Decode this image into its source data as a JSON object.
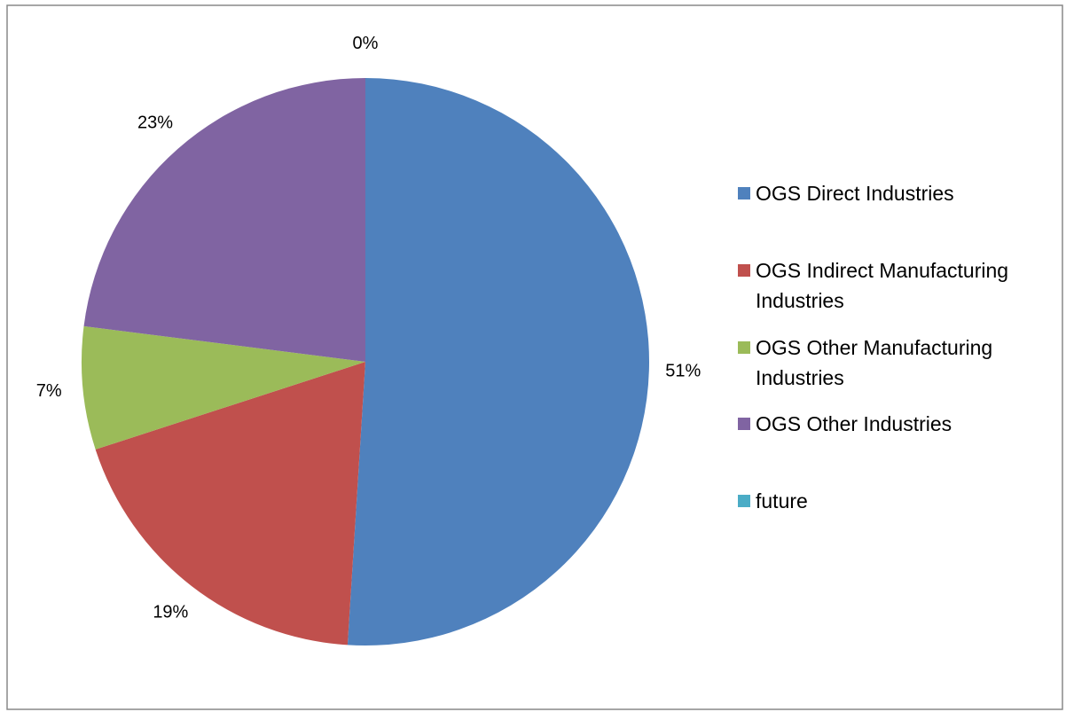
{
  "chart_data": {
    "type": "pie",
    "categories": [
      "OGS Direct Industries",
      "OGS Indirect Manufacturing Industries",
      "OGS Other Manufacturing Industries",
      "OGS Other Industries",
      "future"
    ],
    "values": [
      51,
      19,
      7,
      23,
      0
    ],
    "value_labels": [
      "51%",
      "19%",
      "7%",
      "23%",
      "0%"
    ],
    "colors": [
      "#4f81bd",
      "#c0504d",
      "#9bbb59",
      "#8064a2",
      "#4bacc6"
    ],
    "legend": "right"
  }
}
